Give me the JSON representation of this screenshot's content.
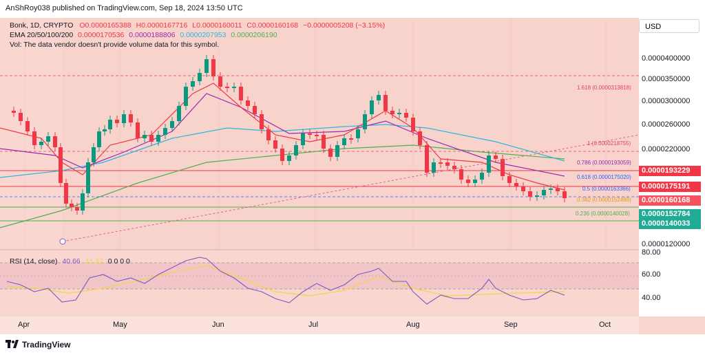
{
  "header": {
    "published_by": "AnShRoy038 published on TradingView.com, Sep 18, 2024 13:50 UTC"
  },
  "legend": {
    "symbol": "Bonk, 1D, CRYPTO",
    "ohlc": {
      "o": "O0.0000165388",
      "h": "H0.0000167716",
      "l": "L0.0000160011",
      "c": "C0.0000160168",
      "chg": "−0.0000005208 (−3.15%)"
    },
    "ema_label": "EMA 20/50/100/200",
    "ema_values": [
      "0.0000170536",
      "0.0000188806",
      "0.0000207953",
      "0.0000206190"
    ],
    "vol_note": "Vol: The data vendor doesn't provide volume data for this symbol.",
    "rsi_label": "RSI (14, close)",
    "rsi_value": "40.66",
    "rsi_ma": "41.32",
    "rsi_zeros": "0 0 0 0"
  },
  "colors": {
    "bg_pink": "#f9d6cf",
    "shade": "#f6cfc8",
    "ema20": "#f23645",
    "ema50": "#9c27b0",
    "ema100": "#2ab7e0",
    "ema200": "#4caf50",
    "candle_up": "#089981",
    "candle_down": "#f23645",
    "rsi_line": "#7e57c2",
    "rsi_ma": "#f2d544",
    "red_line": "#f23645",
    "green_line": "#4caf50"
  },
  "currency_button": "USD",
  "price_axis": {
    "labels": [
      "0.0000400000",
      "0.0000350000",
      "0.0000300000",
      "0.0000260000",
      "0.0000220000",
      "0.0000120000"
    ],
    "badges": [
      {
        "text": "0.0000193229",
        "color": "#f23645"
      },
      {
        "text": "0.0000175191",
        "color": "#f23645"
      },
      {
        "text": "0.0000160168",
        "color": "#f7525f"
      },
      {
        "text": "0.0000152784",
        "color": "#22ab94"
      },
      {
        "text": "0.0000140033",
        "color": "#22ab94"
      }
    ]
  },
  "rsi_axis": {
    "labels": [
      "80.00",
      "60.00",
      "40.00"
    ]
  },
  "fib": [
    {
      "text": "1.618 (0.0000313818)",
      "color": "#e04060"
    },
    {
      "text": "1 (0.0000218755)",
      "color": "#e04060"
    },
    {
      "text": "0.786 (0.0000193059)",
      "color": "#9c27b0"
    },
    {
      "text": "0.618 (0.0000175020)",
      "color": "#2962ff"
    },
    {
      "text": "0.5 (0.0000163366)",
      "color": "#2962ff"
    },
    {
      "text": "0.382 (0.0000152489)",
      "color": "#e0a000"
    },
    {
      "text": "0.236 (0.0000140028)",
      "color": "#4caf50"
    }
  ],
  "time_axis": {
    "labels": [
      "Apr",
      "May",
      "Jun",
      "Jul",
      "Aug",
      "Sep",
      "Oct"
    ]
  },
  "brand": "TradingView"
}
